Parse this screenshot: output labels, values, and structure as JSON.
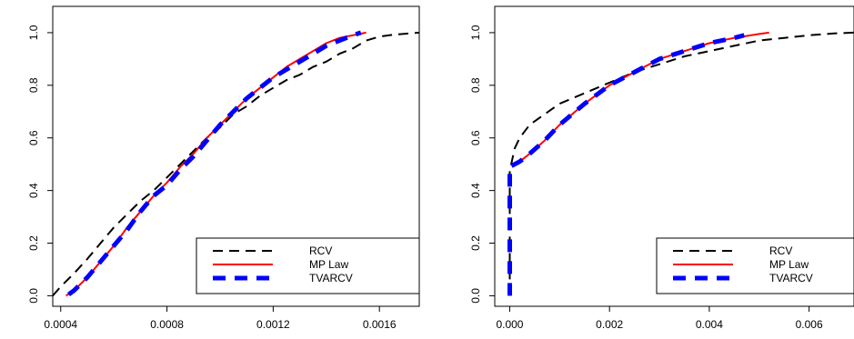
{
  "chart_data": [
    {
      "type": "line",
      "xlim": [
        0.00037,
        0.00175
      ],
      "ylim": [
        -0.04,
        1.1
      ],
      "x_ticks": [
        "0.0004",
        "0.0008",
        "0.0012",
        "0.0016"
      ],
      "x_tick_values": [
        0.0004,
        0.0008,
        0.0012,
        0.0016
      ],
      "y_ticks": [
        "0.0",
        "0.2",
        "0.4",
        "0.6",
        "0.8",
        "1.0"
      ],
      "y_tick_values": [
        0,
        0.2,
        0.4,
        0.6,
        0.8,
        1.0
      ],
      "legend": {
        "placement": "bottom-right",
        "entries": [
          "RCV",
          "MP Law",
          "TVARCV"
        ]
      },
      "series": [
        {
          "name": "RCV",
          "color": "#000000",
          "style": "dashed",
          "x": [
            0.00037,
            0.0004,
            0.00045,
            0.0005,
            0.00055,
            0.0006,
            0.00065,
            0.0007,
            0.00075,
            0.0008,
            0.00085,
            0.0009,
            0.00095,
            0.001,
            0.00105,
            0.0011,
            0.00115,
            0.0012,
            0.00125,
            0.0013,
            0.00135,
            0.0014,
            0.00145,
            0.0015,
            0.00155,
            0.0016,
            0.00165,
            0.00175
          ],
          "y": [
            0.0,
            0.035,
            0.085,
            0.14,
            0.2,
            0.26,
            0.31,
            0.36,
            0.4,
            0.45,
            0.5,
            0.55,
            0.6,
            0.64,
            0.69,
            0.72,
            0.76,
            0.79,
            0.82,
            0.84,
            0.87,
            0.89,
            0.92,
            0.94,
            0.97,
            0.985,
            0.992,
            1.0
          ]
        },
        {
          "name": "MP Law",
          "color": "#ff0000",
          "style": "solid",
          "x": [
            0.00042,
            0.00045,
            0.0005,
            0.00055,
            0.0006,
            0.00065,
            0.0007,
            0.00075,
            0.0008,
            0.00085,
            0.0009,
            0.00095,
            0.001,
            0.00105,
            0.0011,
            0.00115,
            0.0012,
            0.00125,
            0.0013,
            0.00135,
            0.0014,
            0.00145,
            0.0015,
            0.00155
          ],
          "y": [
            0.0,
            0.02,
            0.07,
            0.13,
            0.19,
            0.26,
            0.32,
            0.38,
            0.43,
            0.49,
            0.54,
            0.6,
            0.65,
            0.7,
            0.75,
            0.79,
            0.83,
            0.87,
            0.9,
            0.93,
            0.96,
            0.98,
            0.99,
            1.0
          ]
        },
        {
          "name": "TVARCV",
          "color": "#0000ff",
          "style": "dashed-thick",
          "x": [
            0.00043,
            0.00045,
            0.0005,
            0.00055,
            0.0006,
            0.00065,
            0.0007,
            0.00075,
            0.0008,
            0.00085,
            0.0009,
            0.00095,
            0.001,
            0.00105,
            0.0011,
            0.00115,
            0.0012,
            0.00125,
            0.0013,
            0.00135,
            0.0014,
            0.00145,
            0.0015,
            0.00153
          ],
          "y": [
            0.005,
            0.02,
            0.07,
            0.13,
            0.19,
            0.25,
            0.32,
            0.38,
            0.42,
            0.48,
            0.53,
            0.59,
            0.65,
            0.7,
            0.75,
            0.79,
            0.83,
            0.86,
            0.89,
            0.92,
            0.95,
            0.97,
            0.99,
            1.0
          ]
        }
      ]
    },
    {
      "type": "line",
      "xlim": [
        -0.0003,
        0.0069
      ],
      "ylim": [
        -0.04,
        1.1
      ],
      "x_ticks": [
        "0.000",
        "0.002",
        "0.004",
        "0.006"
      ],
      "x_tick_values": [
        0,
        0.002,
        0.004,
        0.006
      ],
      "y_ticks": [
        "0.0",
        "0.2",
        "0.4",
        "0.6",
        "0.8",
        "1.0"
      ],
      "y_tick_values": [
        0,
        0.2,
        0.4,
        0.6,
        0.8,
        1.0
      ],
      "legend": {
        "placement": "bottom-right",
        "entries": [
          "RCV",
          "MP Law",
          "TVARCV"
        ]
      },
      "series": [
        {
          "name": "RCV",
          "color": "#000000",
          "style": "dashed",
          "x": [
            0.0,
            0.0,
            3e-05,
            0.0001,
            0.0002,
            0.0004,
            0.0007,
            0.001,
            0.0015,
            0.002,
            0.0025,
            0.003,
            0.0035,
            0.004,
            0.0045,
            0.005,
            0.0055,
            0.006,
            0.0065,
            0.0069
          ],
          "y": [
            0.0,
            0.48,
            0.5,
            0.56,
            0.6,
            0.65,
            0.69,
            0.73,
            0.77,
            0.81,
            0.85,
            0.88,
            0.91,
            0.93,
            0.95,
            0.97,
            0.98,
            0.99,
            0.997,
            1.0
          ]
        },
        {
          "name": "MP Law",
          "color": "#ff0000",
          "style": "solid",
          "x": [
            0.0001,
            0.0002,
            0.0004,
            0.0007,
            0.001,
            0.0015,
            0.002,
            0.0025,
            0.003,
            0.0035,
            0.004,
            0.0045,
            0.005,
            0.0052
          ],
          "y": [
            0.5,
            0.51,
            0.54,
            0.59,
            0.65,
            0.73,
            0.8,
            0.85,
            0.9,
            0.93,
            0.96,
            0.98,
            0.995,
            1.0
          ]
        },
        {
          "name": "TVARCV",
          "color": "#0000ff",
          "style": "dashed-thick",
          "x": [
            0.0,
            0.0,
            0.0001,
            0.0002,
            0.0004,
            0.0007,
            0.001,
            0.0015,
            0.002,
            0.0025,
            0.003,
            0.0035,
            0.004,
            0.0045,
            0.0047
          ],
          "y": [
            0.0,
            0.49,
            0.5,
            0.51,
            0.54,
            0.59,
            0.65,
            0.73,
            0.8,
            0.85,
            0.9,
            0.93,
            0.96,
            0.98,
            0.99
          ]
        }
      ]
    }
  ]
}
